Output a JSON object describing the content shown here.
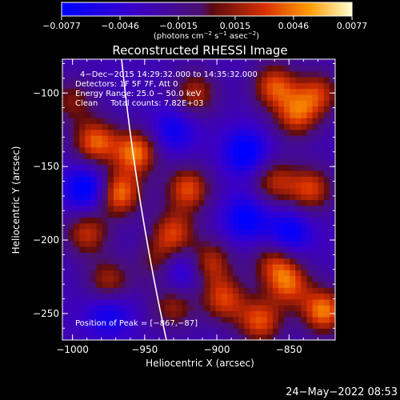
{
  "chart_data": {
    "type": "heatmap",
    "title": "Reconstructed RHESSI Image",
    "xlabel": "Heliocentric X (arcsec)",
    "ylabel": "Heliocentric Y (arcsec)",
    "xlim": [
      -1007,
      -818
    ],
    "ylim": [
      -268,
      -77
    ],
    "x_ticks": [
      -1000,
      -950,
      -900,
      -850
    ],
    "y_ticks": [
      -100,
      -150,
      -200,
      -250
    ],
    "x_tick_labels": [
      "−1000",
      "−950",
      "−900",
      "−850"
    ],
    "y_tick_labels": [
      "−100",
      "−150",
      "−200",
      "−250"
    ],
    "colorbar": {
      "min": -0.0077,
      "max": 0.0077,
      "ticks": [
        -0.0077,
        -0.0046,
        -0.0015,
        0.0015,
        0.0046,
        0.0077
      ],
      "tick_labels": [
        "−0.0077",
        "−0.0046",
        "−0.0015",
        "0.0015",
        "0.0046",
        "0.0077"
      ],
      "unit_base": "(photons cm",
      "unit_exp1": "−2",
      "unit_mid": " s",
      "unit_exp2": "−1",
      "unit_end": " asec",
      "unit_exp3": "−2",
      "unit_close": ")"
    },
    "annotations": {
      "line1": "4−Dec−2015 14:29:32.000 to 14:35:32.000",
      "line2": "Detectors: 1F 5F 7F, Att 0",
      "line3": "Energy Range: 25.0 − 50.0 keV",
      "line4": "Clean     Total counts: 7.82E+03",
      "peak": "Position of Peak = [−867,−87]"
    },
    "peak_position": [
      -867,
      -87
    ],
    "blobs": [
      {
        "x": -984,
        "y": -133,
        "intensity": 0.007
      },
      {
        "x": -956,
        "y": -140,
        "intensity": 0.0075
      },
      {
        "x": -968,
        "y": -168,
        "intensity": 0.0077
      },
      {
        "x": -990,
        "y": -195,
        "intensity": 0.0055
      },
      {
        "x": -975,
        "y": -228,
        "intensity": 0.005
      },
      {
        "x": -920,
        "y": -165,
        "intensity": 0.0065
      },
      {
        "x": -930,
        "y": -195,
        "intensity": 0.006
      },
      {
        "x": -905,
        "y": -215,
        "intensity": 0.0055
      },
      {
        "x": -895,
        "y": -240,
        "intensity": 0.006
      },
      {
        "x": -930,
        "y": -245,
        "intensity": 0.0045
      },
      {
        "x": -860,
        "y": -95,
        "intensity": 0.0065
      },
      {
        "x": -845,
        "y": -115,
        "intensity": 0.006
      },
      {
        "x": -830,
        "y": -100,
        "intensity": 0.0055
      },
      {
        "x": -835,
        "y": -165,
        "intensity": 0.006
      },
      {
        "x": -860,
        "y": -160,
        "intensity": 0.005
      },
      {
        "x": -860,
        "y": -215,
        "intensity": 0.005
      },
      {
        "x": -850,
        "y": -230,
        "intensity": 0.006
      },
      {
        "x": -870,
        "y": -255,
        "intensity": 0.0065
      },
      {
        "x": -826,
        "y": -248,
        "intensity": 0.0077
      },
      {
        "x": -1000,
        "y": -105,
        "intensity": 0.004
      },
      {
        "x": -915,
        "y": -100,
        "intensity": 0.005
      },
      {
        "x": -940,
        "y": -215,
        "intensity": 0.004
      }
    ],
    "negative_blobs": [
      {
        "x": -990,
        "y": -165,
        "intensity": -0.006
      },
      {
        "x": -880,
        "y": -140,
        "intensity": -0.0055
      },
      {
        "x": -850,
        "y": -195,
        "intensity": -0.005
      },
      {
        "x": -925,
        "y": -220,
        "intensity": -0.0045
      },
      {
        "x": -975,
        "y": -250,
        "intensity": -0.004
      },
      {
        "x": -930,
        "y": -125,
        "intensity": -0.004
      },
      {
        "x": -880,
        "y": -185,
        "intensity": -0.005
      }
    ]
  },
  "footer": {
    "timestamp": "24−May−2022 08:53"
  }
}
